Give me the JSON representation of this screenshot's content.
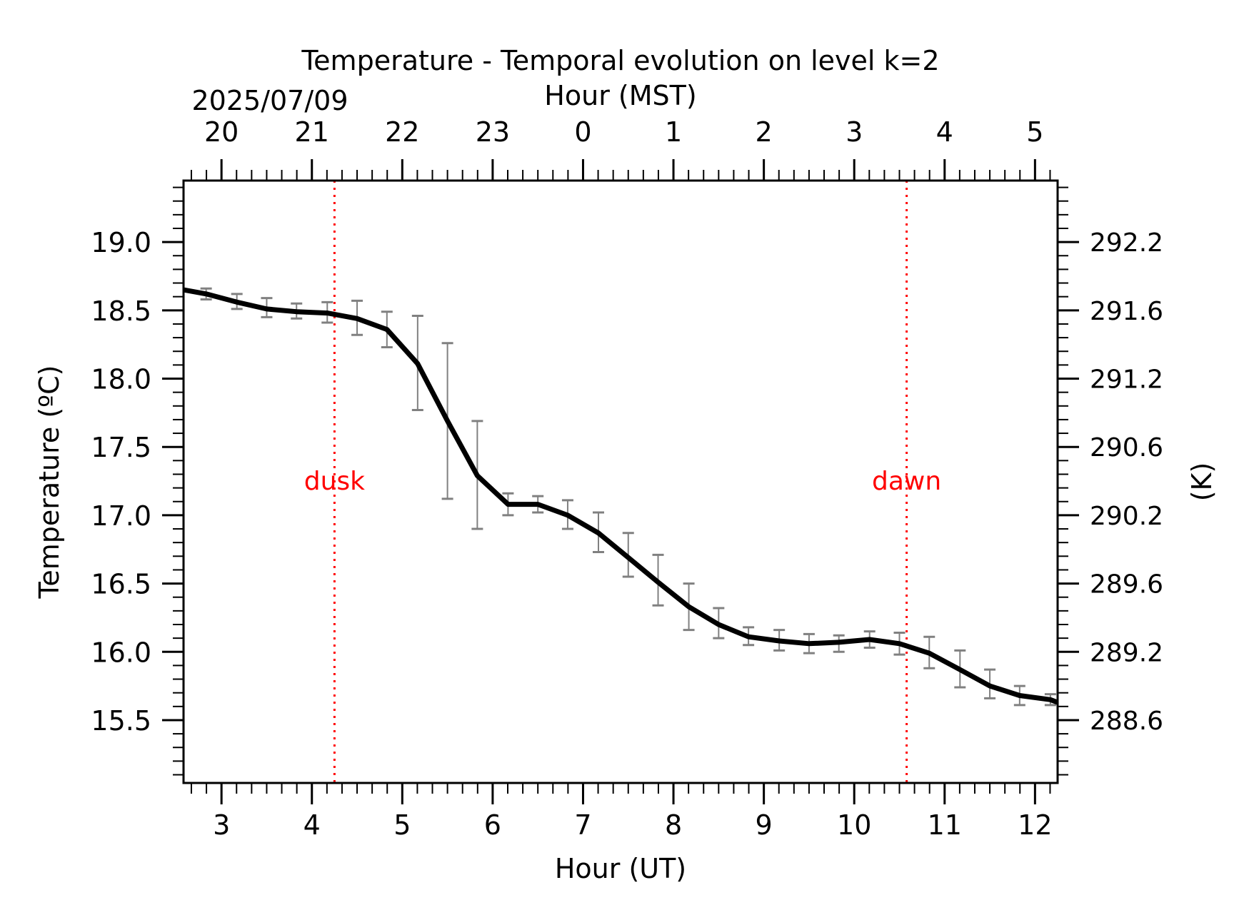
{
  "chart_data": {
    "type": "line",
    "title": "Temperature - Temporal evolution on level k=2",
    "top_axis": {
      "label": "Hour (MST)",
      "date_label": "2025/07/09",
      "ticks": [
        {
          "ut": 3,
          "label": "20"
        },
        {
          "ut": 4,
          "label": "21"
        },
        {
          "ut": 5,
          "label": "22"
        },
        {
          "ut": 6,
          "label": "23"
        },
        {
          "ut": 7,
          "label": "0"
        },
        {
          "ut": 8,
          "label": "1"
        },
        {
          "ut": 9,
          "label": "2"
        },
        {
          "ut": 10,
          "label": "3"
        },
        {
          "ut": 11,
          "label": "4"
        },
        {
          "ut": 12,
          "label": "5"
        }
      ]
    },
    "xlabel": "Hour (UT)",
    "ylabel": "Temperature (ºC)",
    "y2label": "(K)",
    "xlim": [
      2.58,
      12.25
    ],
    "ylim": [
      15.04,
      19.45
    ],
    "x_ticks": [
      3,
      4,
      5,
      6,
      7,
      8,
      9,
      10,
      11,
      12
    ],
    "x_tick_labels": [
      "3",
      "4",
      "5",
      "6",
      "7",
      "8",
      "9",
      "10",
      "11",
      "12"
    ],
    "y_ticks": [
      15.5,
      16.0,
      16.5,
      17.0,
      17.5,
      18.0,
      18.5,
      19.0
    ],
    "y_tick_labels": [
      "15.5",
      "16.0",
      "16.5",
      "17.0",
      "17.5",
      "18.0",
      "18.5",
      "19.0"
    ],
    "y2_ticks": [
      288.6,
      289.2,
      289.6,
      290.2,
      290.6,
      291.2,
      291.6,
      292.2
    ],
    "y2_tick_labels": [
      "288.6",
      "289.2",
      "289.6",
      "290.2",
      "290.6",
      "291.2",
      "291.6",
      "292.2"
    ],
    "series": [
      {
        "color": "#000000",
        "x": [
          2.58,
          2.83,
          3.17,
          3.5,
          3.83,
          4.17,
          4.5,
          4.83,
          5.17,
          5.5,
          5.83,
          6.17,
          6.5,
          6.83,
          7.17,
          7.5,
          7.83,
          8.17,
          8.5,
          8.83,
          9.17,
          9.5,
          9.83,
          10.17,
          10.5,
          10.83,
          11.17,
          11.5,
          11.83,
          12.17,
          12.25
        ],
        "y": [
          18.65,
          18.62,
          18.56,
          18.51,
          18.49,
          18.48,
          18.44,
          18.36,
          18.11,
          17.69,
          17.29,
          17.08,
          17.08,
          17.0,
          16.87,
          16.69,
          16.51,
          16.33,
          16.2,
          16.11,
          16.08,
          16.06,
          16.07,
          16.09,
          16.06,
          15.99,
          15.87,
          15.75,
          15.68,
          15.65,
          15.63
        ]
      }
    ],
    "error_bars": {
      "color": "#808080",
      "x": [
        2.83,
        3.17,
        3.5,
        3.83,
        4.17,
        4.5,
        4.83,
        5.17,
        5.5,
        5.83,
        6.17,
        6.5,
        6.83,
        7.17,
        7.5,
        7.83,
        8.17,
        8.5,
        8.83,
        9.17,
        9.5,
        9.83,
        10.17,
        10.5,
        10.83,
        11.17,
        11.5,
        11.83,
        12.17
      ],
      "low": [
        18.58,
        18.51,
        18.45,
        18.44,
        18.41,
        18.32,
        18.23,
        17.77,
        17.12,
        16.9,
        17.0,
        17.02,
        16.9,
        16.73,
        16.55,
        16.34,
        16.16,
        16.1,
        16.05,
        16.01,
        15.99,
        16.0,
        16.03,
        15.98,
        15.88,
        15.74,
        15.66,
        15.61,
        15.61
      ],
      "high": [
        18.66,
        18.62,
        18.59,
        18.55,
        18.56,
        18.57,
        18.49,
        18.46,
        18.26,
        17.69,
        17.16,
        17.14,
        17.11,
        17.02,
        16.87,
        16.71,
        16.5,
        16.32,
        16.18,
        16.16,
        16.13,
        16.12,
        16.15,
        16.14,
        16.11,
        16.01,
        15.87,
        15.75,
        15.69
      ]
    },
    "vlines": [
      {
        "x": 4.25,
        "label": "dusk",
        "label_y": 17.25,
        "color": "#ff0000",
        "style": "dotted"
      },
      {
        "x": 10.58,
        "label": "dawn",
        "label_y": 17.25,
        "color": "#ff0000",
        "style": "dotted"
      }
    ],
    "grid": false,
    "legend": "none"
  }
}
